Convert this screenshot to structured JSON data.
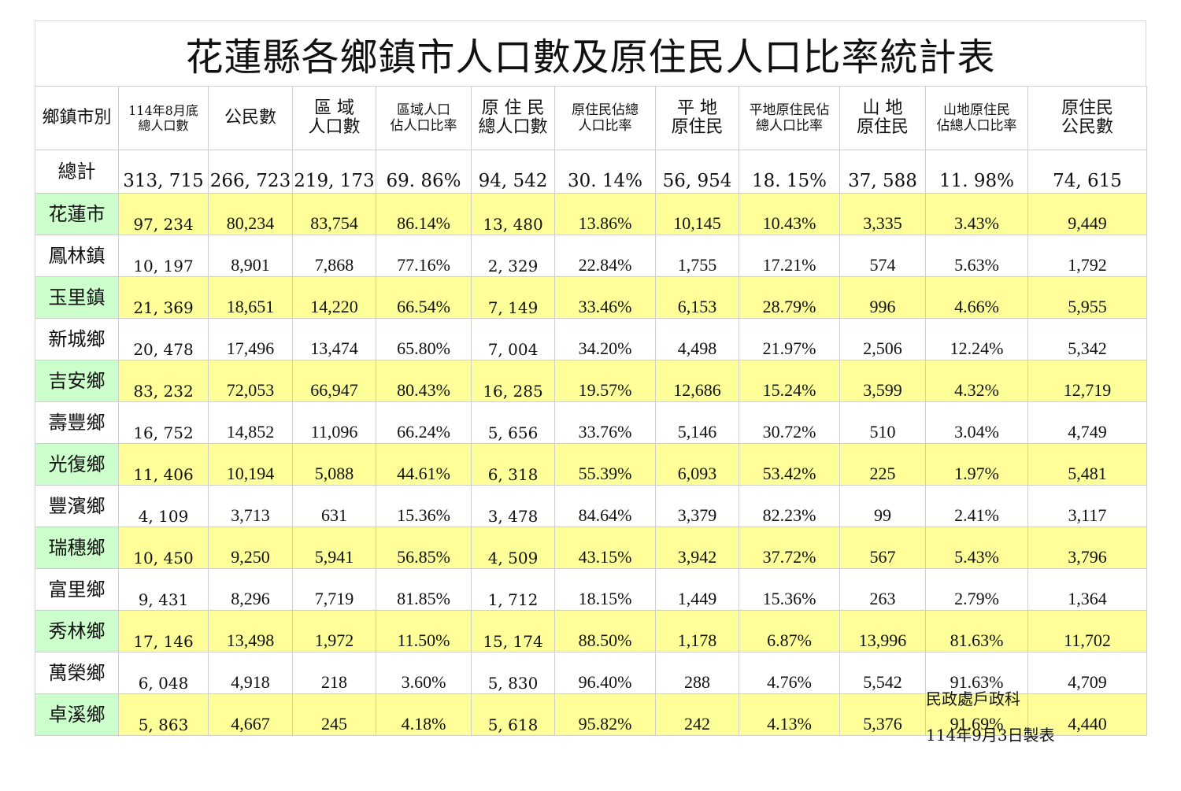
{
  "title": "花蓮縣各鄉鎮市人口數及原住民人口比率統計表",
  "colors": {
    "alt_row_bg": "#ffff99",
    "alt_name_bg": "#ccffcc",
    "grid": "#cfcfcf"
  },
  "headers": [
    [
      "鄉鎮市別"
    ],
    [
      "114年8月底",
      "總人口數"
    ],
    [
      "公民數"
    ],
    [
      "區 域",
      "人口數"
    ],
    [
      "區域人口",
      "佔人口比率"
    ],
    [
      "原 住 民",
      "總人口數"
    ],
    [
      "原住民佔總",
      "人口比率"
    ],
    [
      "平 地",
      "原住民"
    ],
    [
      "平地原住民佔",
      "總人口比率"
    ],
    [
      "山 地",
      "原住民"
    ],
    [
      "山地原住民",
      "佔總人口比率"
    ],
    [
      "原住民",
      "公民數"
    ]
  ],
  "total": [
    "總計",
    "313, 715",
    "266, 723",
    "219, 173",
    "69. 86%",
    "94, 542",
    "30. 14%",
    "56, 954",
    "18. 15%",
    "37, 588",
    "11. 98%",
    "74, 615"
  ],
  "rows": [
    [
      "花蓮市",
      "97, 234",
      "80,234",
      "83,754",
      "86.14%",
      "13, 480",
      "13.86%",
      "10,145",
      "10.43%",
      "3,335",
      "3.43%",
      "9,449"
    ],
    [
      "鳳林鎮",
      "10, 197",
      "8,901",
      "7,868",
      "77.16%",
      "2, 329",
      "22.84%",
      "1,755",
      "17.21%",
      "574",
      "5.63%",
      "1,792"
    ],
    [
      "玉里鎮",
      "21, 369",
      "18,651",
      "14,220",
      "66.54%",
      "7, 149",
      "33.46%",
      "6,153",
      "28.79%",
      "996",
      "4.66%",
      "5,955"
    ],
    [
      "新城鄉",
      "20, 478",
      "17,496",
      "13,474",
      "65.80%",
      "7, 004",
      "34.20%",
      "4,498",
      "21.97%",
      "2,506",
      "12.24%",
      "5,342"
    ],
    [
      "吉安鄉",
      "83, 232",
      "72,053",
      "66,947",
      "80.43%",
      "16, 285",
      "19.57%",
      "12,686",
      "15.24%",
      "3,599",
      "4.32%",
      "12,719"
    ],
    [
      "壽豐鄉",
      "16, 752",
      "14,852",
      "11,096",
      "66.24%",
      "5, 656",
      "33.76%",
      "5,146",
      "30.72%",
      "510",
      "3.04%",
      "4,749"
    ],
    [
      "光復鄉",
      "11, 406",
      "10,194",
      "5,088",
      "44.61%",
      "6, 318",
      "55.39%",
      "6,093",
      "53.42%",
      "225",
      "1.97%",
      "5,481"
    ],
    [
      "豐濱鄉",
      "4, 109",
      "3,713",
      "631",
      "15.36%",
      "3, 478",
      "84.64%",
      "3,379",
      "82.23%",
      "99",
      "2.41%",
      "3,117"
    ],
    [
      "瑞穗鄉",
      "10, 450",
      "9,250",
      "5,941",
      "56.85%",
      "4, 509",
      "43.15%",
      "3,942",
      "37.72%",
      "567",
      "5.43%",
      "3,796"
    ],
    [
      "富里鄉",
      "9, 431",
      "8,296",
      "7,719",
      "81.85%",
      "1, 712",
      "18.15%",
      "1,449",
      "15.36%",
      "263",
      "2.79%",
      "1,364"
    ],
    [
      "秀林鄉",
      "17, 146",
      "13,498",
      "1,972",
      "11.50%",
      "15, 174",
      "88.50%",
      "1,178",
      "6.87%",
      "13,996",
      "81.63%",
      "11,702"
    ],
    [
      "萬榮鄉",
      "6, 048",
      "4,918",
      "218",
      "3.60%",
      "5, 830",
      "96.40%",
      "288",
      "4.76%",
      "5,542",
      "91.63%",
      "4,709"
    ],
    [
      "卓溪鄉",
      "5, 863",
      "4,667",
      "245",
      "4.18%",
      "5, 618",
      "95.82%",
      "242",
      "4.13%",
      "5,376",
      "91.69%",
      "4,440"
    ]
  ],
  "footer": {
    "department": "民政處戶政科",
    "date": "114年9月3日製表"
  }
}
